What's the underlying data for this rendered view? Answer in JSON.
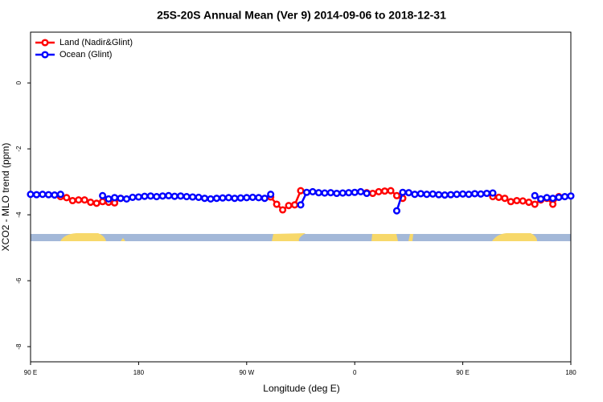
{
  "chart_data": {
    "type": "line",
    "title": "25S-20S Annual Mean (Ver 9)   2014-09-06 to 2018-12-31",
    "x_label": "Longitude (deg E)",
    "y_label": "XCO2 - MLO trend (ppm)",
    "legend": "top-left",
    "xlim": [
      90,
      540
    ],
    "ylim": [
      -8.46,
      1.54
    ],
    "xticks": [
      {
        "value": 90,
        "label": "90 E"
      },
      180,
      {
        "value": 270,
        "label": "90 W"
      },
      {
        "value": 360,
        "label": "0"
      },
      {
        "value": 450,
        "label": "90 E"
      },
      {
        "value": 540,
        "label": "180"
      }
    ],
    "yticks": [
      0,
      -2,
      -4,
      -6,
      -8
    ],
    "x": [
      90,
      95,
      100,
      105,
      110,
      115,
      120,
      125,
      130,
      135,
      140,
      145,
      150,
      155,
      160,
      165,
      170,
      175,
      180,
      185,
      190,
      195,
      200,
      205,
      210,
      215,
      220,
      225,
      230,
      235,
      240,
      245,
      250,
      255,
      260,
      265,
      270,
      275,
      280,
      285,
      290,
      295,
      300,
      305,
      310,
      315,
      320,
      325,
      330,
      335,
      340,
      345,
      350,
      355,
      360,
      365,
      370,
      375,
      380,
      385,
      390,
      395,
      400,
      405,
      410,
      415,
      420,
      425,
      430,
      435,
      440,
      445,
      450,
      455,
      460,
      465,
      470,
      475,
      480,
      485,
      490,
      495,
      500,
      505,
      510,
      515,
      520,
      525,
      530,
      535,
      540
    ],
    "series": [
      {
        "name": "Land (Nadir&Glint)",
        "color": "#ff0000",
        "values": [
          null,
          null,
          null,
          null,
          null,
          -3.45,
          -3.48,
          -3.57,
          -3.55,
          -3.55,
          -3.62,
          -3.65,
          -3.6,
          -3.62,
          -3.64,
          -3.5,
          null,
          null,
          null,
          null,
          null,
          null,
          null,
          null,
          null,
          null,
          null,
          null,
          null,
          null,
          null,
          null,
          null,
          null,
          null,
          null,
          null,
          null,
          null,
          null,
          -3.46,
          -3.68,
          -3.85,
          -3.72,
          -3.7,
          -3.27,
          null,
          null,
          null,
          null,
          null,
          null,
          null,
          null,
          null,
          null,
          -3.33,
          -3.35,
          -3.3,
          -3.28,
          -3.27,
          -3.42,
          -3.5,
          null,
          null,
          null,
          null,
          null,
          null,
          null,
          null,
          null,
          null,
          null,
          null,
          null,
          null,
          -3.45,
          -3.47,
          -3.5,
          -3.6,
          -3.57,
          -3.58,
          -3.62,
          -3.68,
          -3.55,
          -3.5,
          -3.68,
          -3.45,
          null,
          null
        ]
      },
      {
        "name": "Ocean (Glint)",
        "color": "#0000ff",
        "values": [
          -3.38,
          -3.39,
          -3.38,
          -3.39,
          -3.4,
          -3.38,
          null,
          null,
          null,
          null,
          null,
          null,
          -3.42,
          -3.52,
          -3.48,
          -3.5,
          -3.52,
          -3.47,
          -3.46,
          -3.44,
          -3.43,
          -3.45,
          -3.43,
          -3.42,
          -3.44,
          -3.43,
          -3.45,
          -3.46,
          -3.47,
          -3.5,
          -3.52,
          -3.5,
          -3.49,
          -3.48,
          -3.5,
          -3.49,
          -3.48,
          -3.47,
          -3.48,
          -3.5,
          -3.38,
          null,
          null,
          null,
          null,
          -3.7,
          -3.32,
          -3.3,
          -3.33,
          -3.34,
          -3.33,
          -3.35,
          -3.34,
          -3.33,
          -3.32,
          -3.3,
          -3.35,
          null,
          null,
          null,
          null,
          -3.88,
          -3.32,
          -3.33,
          -3.38,
          -3.36,
          -3.38,
          -3.37,
          -3.39,
          -3.4,
          -3.39,
          -3.38,
          -3.37,
          -3.38,
          -3.36,
          -3.37,
          -3.35,
          -3.34,
          null,
          null,
          null,
          null,
          null,
          null,
          -3.42,
          -3.52,
          -3.48,
          -3.5,
          -3.47,
          -3.45,
          -3.43
        ]
      }
    ]
  }
}
